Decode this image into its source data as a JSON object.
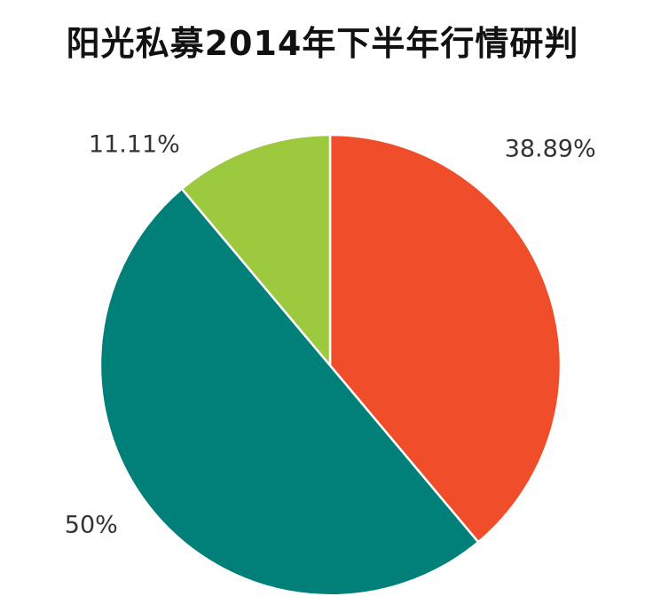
{
  "chart_data": {
    "type": "pie",
    "title": "阳光私募2014年下半年行情研判",
    "categories": [
      "",
      "",
      ""
    ],
    "values": [
      38.89,
      50,
      11.11
    ],
    "labels": [
      "38.89%",
      "50%",
      "11.11%"
    ],
    "colors": [
      "#f04e2a",
      "#01807a",
      "#9cc93e"
    ],
    "start_angle": 0,
    "direction": "clockwise",
    "legend": "none"
  }
}
